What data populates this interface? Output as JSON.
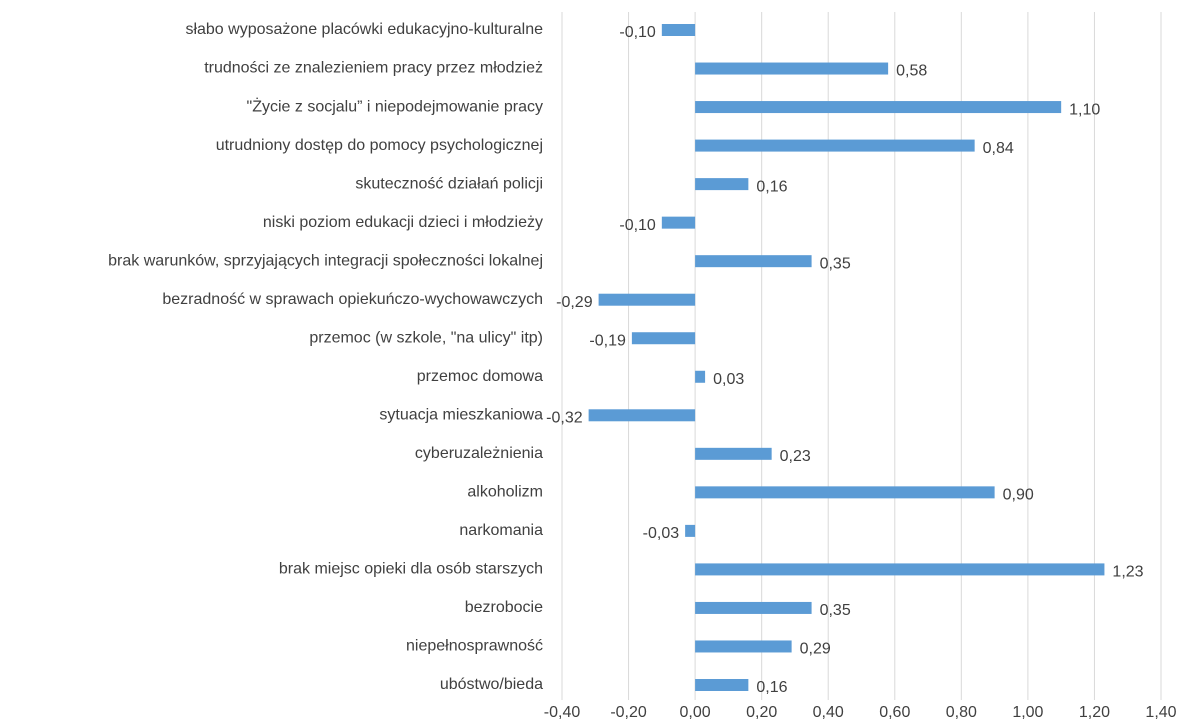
{
  "chart_data": {
    "type": "bar",
    "orientation": "horizontal",
    "categories": [
      "słabo wyposażone placówki edukacyjno-kulturalne",
      "trudności ze znalezieniem pracy przez młodzież",
      "\"Życie z socjalu” i niepodejmowanie pracy",
      "utrudniony dostęp do pomocy psychologicznej",
      "skuteczność działań policji",
      "niski poziom edukacji dzieci i młodzieży",
      "brak warunków, sprzyjających integracji społeczności lokalnej",
      "bezradność w sprawach opiekuńczo-wychowawczych",
      "przemoc (w szkole, \"na ulicy\" itp)",
      "przemoc domowa",
      "sytuacja mieszkaniowa",
      "cyberuzależnienia",
      "alkoholizm",
      "narkomania",
      "brak miejsc opieki dla osób starszych",
      "bezrobocie",
      "niepełnosprawność",
      "ubóstwo/bieda"
    ],
    "values": [
      -0.1,
      0.58,
      1.1,
      0.84,
      0.16,
      -0.1,
      0.35,
      -0.29,
      -0.19,
      0.03,
      -0.32,
      0.23,
      0.9,
      -0.03,
      1.23,
      0.35,
      0.29,
      0.16
    ],
    "value_labels": [
      "-0,10",
      "0,58",
      "1,10",
      "0,84",
      "0,16",
      "-0,10",
      "0,35",
      "-0,29",
      "-0,19",
      "0,03",
      "-0,32",
      "0,23",
      "0,90",
      "-0,03",
      "1,23",
      "0,35",
      "0,29",
      "0,16"
    ],
    "color": "#5b9bd5",
    "xlim": [
      -0.4,
      1.4
    ],
    "xticks": [
      {
        "value": -0.4,
        "label": "-0,40"
      },
      {
        "value": -0.2,
        "label": "-0,20"
      },
      {
        "value": 0,
        "label": "0,00"
      },
      {
        "value": 0.2,
        "label": "0,20"
      },
      {
        "value": 0.4,
        "label": "0,40"
      },
      {
        "value": 0.6,
        "label": "0,60"
      },
      {
        "value": 0.8,
        "label": "0,80"
      },
      {
        "value": 1.0,
        "label": "1,00"
      },
      {
        "value": 1.2,
        "label": "1,20"
      },
      {
        "value": 1.4,
        "label": "1,40"
      }
    ],
    "grid": true
  }
}
